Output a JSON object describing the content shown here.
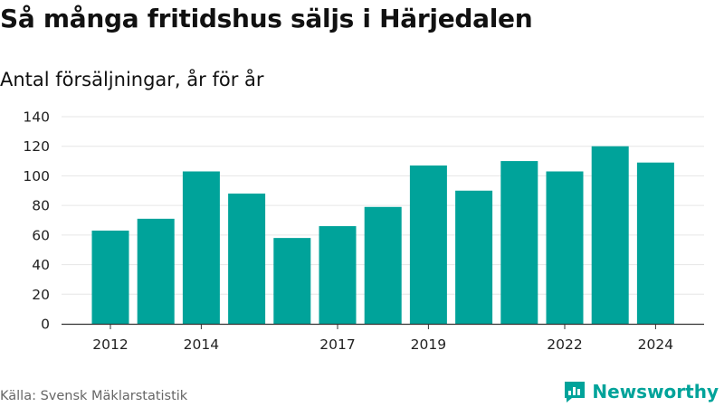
{
  "header": {
    "title": "Så många fritidshus säljs i Härjedalen",
    "subtitle": "Antal försäljningar, år för år"
  },
  "footer": {
    "source": "Källa: Svensk Mäklarstatistik",
    "brand": "Newsworthy"
  },
  "colors": {
    "bar": "#00a39a",
    "grid": "#e6e6e6",
    "axis": "#333333",
    "brand": "#00a39a"
  },
  "chart_data": {
    "type": "bar",
    "title": "Så många fritidshus säljs i Härjedalen",
    "subtitle": "Antal försäljningar, år för år",
    "xlabel": "",
    "ylabel": "",
    "ylim": [
      0,
      140
    ],
    "yticks": [
      0,
      20,
      40,
      60,
      80,
      100,
      120,
      140
    ],
    "grid": "horizontal",
    "categories": [
      "2012",
      "2013",
      "2014",
      "2015",
      "2016",
      "2017",
      "2018",
      "2019",
      "2020",
      "2021",
      "2022",
      "2023",
      "2024"
    ],
    "x_tick_labels": [
      "2012",
      "2014",
      "2017",
      "2019",
      "2022",
      "2024"
    ],
    "values": [
      63,
      71,
      103,
      88,
      58,
      66,
      79,
      107,
      90,
      110,
      103,
      120,
      109
    ]
  }
}
